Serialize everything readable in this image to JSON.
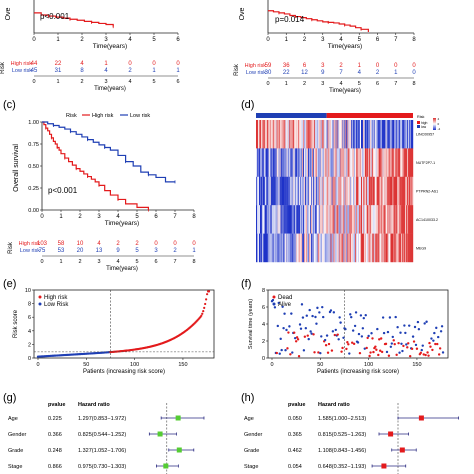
{
  "colors": {
    "high": "#e31a1c",
    "low": "#1f3fb4",
    "axis": "#222222",
    "cut": "#444444"
  },
  "panel_labels": {
    "c": "(c)",
    "d": "(d)",
    "e": "(e)",
    "f": "(f)",
    "g": "(g)",
    "h": "(h)"
  },
  "chart_data": [
    {
      "panel": "a",
      "type": "line",
      "ylabel": "Ove",
      "xlabel": "Time(years)",
      "xlim": [
        0,
        6
      ],
      "xticks": [
        "0",
        "1",
        "2",
        "3",
        "4",
        "5",
        "6"
      ],
      "pvalue": "p<0.001",
      "series": [
        {
          "name": "High risk",
          "x": [
            0,
            0.3,
            0.6,
            0.9,
            1.2,
            1.5,
            1.8,
            2.1,
            2.4,
            2.7,
            3.0,
            3.3
          ],
          "y": [
            0.38,
            0.34,
            0.32,
            0.3,
            0.28,
            0.26,
            0.24,
            0.22,
            0.2,
            0.18,
            0.16,
            0.12
          ]
        },
        {
          "name": "Low risk",
          "x": [
            4.0,
            4.0,
            6.0
          ],
          "y": [
            1.0,
            0.98,
            0.98
          ]
        }
      ],
      "risk_table": {
        "label": "Risk",
        "rows": [
          {
            "name": "High risk",
            "values": [
              "44",
              "22",
              "4",
              "1",
              "0",
              "0",
              "0"
            ]
          },
          {
            "name": "Low risk",
            "values": [
              "45",
              "31",
              "8",
              "4",
              "2",
              "1",
              "1"
            ]
          }
        ]
      }
    },
    {
      "panel": "b",
      "type": "line",
      "ylabel": "Ove",
      "xlabel": "Time(years)",
      "xlim": [
        0,
        8
      ],
      "xticks": [
        "0",
        "1",
        "2",
        "3",
        "4",
        "5",
        "6",
        "7",
        "8"
      ],
      "pvalue": "p=0.014",
      "series": [
        {
          "name": "High risk",
          "x": [
            0,
            0.3,
            0.6,
            0.9,
            1.2,
            1.5,
            1.8,
            2.1,
            2.4,
            2.7,
            3.0,
            3.3,
            3.6,
            3.9,
            4.2,
            4.5,
            4.8,
            5.1,
            5.5
          ],
          "y": [
            0.42,
            0.4,
            0.38,
            0.36,
            0.33,
            0.31,
            0.29,
            0.27,
            0.25,
            0.23,
            0.21,
            0.2,
            0.19,
            0.17,
            0.15,
            0.13,
            0.1,
            0.07,
            0.02
          ]
        }
      ],
      "risk_table": {
        "label": "Risk",
        "rows": [
          {
            "name": "High risk",
            "values": [
              "59",
              "36",
              "6",
              "3",
              "2",
              "1",
              "0",
              "0",
              "0"
            ]
          },
          {
            "name": "Low risk",
            "values": [
              "30",
              "22",
              "12",
              "9",
              "7",
              "4",
              "2",
              "1",
              "0"
            ]
          }
        ]
      }
    },
    {
      "panel": "c",
      "type": "line",
      "legend_title": "Risk",
      "legend": [
        "High risk",
        "Low risk"
      ],
      "ylabel": "Overall survival",
      "xlabel": "Time(years)",
      "xlim": [
        0,
        8
      ],
      "ylim": [
        0,
        1
      ],
      "xticks": [
        "0",
        "1",
        "2",
        "3",
        "4",
        "5",
        "6",
        "7",
        "8"
      ],
      "yticks": [
        "0.00",
        "0.25",
        "0.50",
        "0.75",
        "1.00"
      ],
      "pvalue": "p<0.001",
      "series": [
        {
          "name": "High risk",
          "x": [
            0,
            0.1,
            0.2,
            0.3,
            0.4,
            0.5,
            0.6,
            0.7,
            0.8,
            0.9,
            1.0,
            1.2,
            1.4,
            1.6,
            1.8,
            2.0,
            2.2,
            2.4,
            2.6,
            2.8,
            3.0,
            3.3,
            3.6,
            4.0,
            4.4,
            5.0,
            5.6
          ],
          "y": [
            1.0,
            0.97,
            0.93,
            0.9,
            0.86,
            0.82,
            0.78,
            0.75,
            0.71,
            0.68,
            0.64,
            0.59,
            0.55,
            0.51,
            0.47,
            0.44,
            0.41,
            0.38,
            0.35,
            0.32,
            0.28,
            0.22,
            0.17,
            0.12,
            0.07,
            0.03,
            0.0
          ]
        },
        {
          "name": "Low risk",
          "x": [
            0,
            0.3,
            0.6,
            0.9,
            1.2,
            1.5,
            1.8,
            2.1,
            2.4,
            2.7,
            3.0,
            3.3,
            3.6,
            4.0,
            4.4,
            4.8,
            5.2,
            5.6,
            6.0,
            6.5,
            7.0
          ],
          "y": [
            1.0,
            0.98,
            0.96,
            0.94,
            0.92,
            0.89,
            0.86,
            0.83,
            0.8,
            0.77,
            0.74,
            0.71,
            0.68,
            0.62,
            0.55,
            0.5,
            0.43,
            0.4,
            0.37,
            0.32,
            0.32
          ]
        }
      ],
      "risk_table": {
        "label": "Risk",
        "rows": [
          {
            "name": "High risk",
            "values": [
              "103",
              "58",
              "10",
              "4",
              "2",
              "2",
              "0",
              "0",
              "0"
            ]
          },
          {
            "name": "Low risk",
            "values": [
              "75",
              "53",
              "20",
              "13",
              "9",
              "5",
              "3",
              "2",
              "1"
            ]
          }
        ]
      }
    },
    {
      "panel": "d",
      "type": "heatmap",
      "legend_title": "Risk",
      "legend": [
        "high",
        "low"
      ],
      "scale_ticks": [
        "4",
        "0",
        "-4"
      ],
      "genes": [
        "LINC00957",
        "NUTF2P7-1",
        "PTPRN2-AS1",
        "AC1410033.2",
        "MEG9"
      ],
      "high_fraction": 0.45
    },
    {
      "panel": "e",
      "type": "scatter",
      "legend": [
        "High risk",
        "Low Risk"
      ],
      "ylabel": "Risk score",
      "xlabel": "Patients (increasing risk score)",
      "xlim": [
        0,
        178
      ],
      "ylim": [
        0,
        10
      ],
      "xticks": [
        "0",
        "50",
        "100",
        "150"
      ],
      "yticks": [
        "0",
        "2",
        "4",
        "6",
        "8",
        "10"
      ],
      "cutoff_x": 75,
      "cutoff_y": 0.9,
      "n": 178
    },
    {
      "panel": "f",
      "type": "scatter",
      "legend": [
        "Dead",
        "Alive"
      ],
      "ylabel": "Survival time (years)",
      "xlabel": "Patients (increasing risk score)",
      "xlim": [
        0,
        178
      ],
      "ylim": [
        0,
        8
      ],
      "xticks": [
        "0",
        "50",
        "100",
        "150"
      ],
      "yticks": [
        "0",
        "2",
        "4",
        "6",
        "8"
      ],
      "cutoff_x": 75,
      "n": 178
    },
    {
      "panel": "g",
      "type": "forest",
      "headers": [
        "pvalue",
        "Hazard ratio"
      ],
      "rows": [
        {
          "label": "Age",
          "p": "0.225",
          "hr_text": "1.297(0.853−1.972)",
          "hr": 1.297,
          "lo": 0.853,
          "hi": 1.972
        },
        {
          "label": "Gender",
          "p": "0.366",
          "hr_text": "0.825(0.544−1.252)",
          "hr": 0.825,
          "lo": 0.544,
          "hi": 1.252
        },
        {
          "label": "Grade",
          "p": "0.248",
          "hr_text": "1.327(1.052−1.706)",
          "hr": 1.327,
          "lo": 1.052,
          "hi": 1.706
        },
        {
          "label": "Stage",
          "p": "0.866",
          "hr_text": "0.975(0.730−1.303)",
          "hr": 0.975,
          "lo": 0.73,
          "hi": 1.303
        }
      ]
    },
    {
      "panel": "h",
      "type": "forest",
      "headers": [
        "pvalue",
        "Hazard ratio"
      ],
      "rows": [
        {
          "label": "Age",
          "p": "0.050",
          "hr_text": "1.585(1.000−2.513)",
          "hr": 1.585,
          "lo": 1.0,
          "hi": 2.513
        },
        {
          "label": "Gender",
          "p": "0.365",
          "hr_text": "0.815(0.525−1.263)",
          "hr": 0.815,
          "lo": 0.525,
          "hi": 1.263
        },
        {
          "label": "Grade",
          "p": "0.462",
          "hr_text": "1.108(0.843−1.456)",
          "hr": 1.108,
          "lo": 0.843,
          "hi": 1.456
        },
        {
          "label": "Stage",
          "p": "0.054",
          "hr_text": "0.648(0.352−1.193)",
          "hr": 0.648,
          "lo": 0.352,
          "hi": 1.193
        }
      ]
    }
  ]
}
